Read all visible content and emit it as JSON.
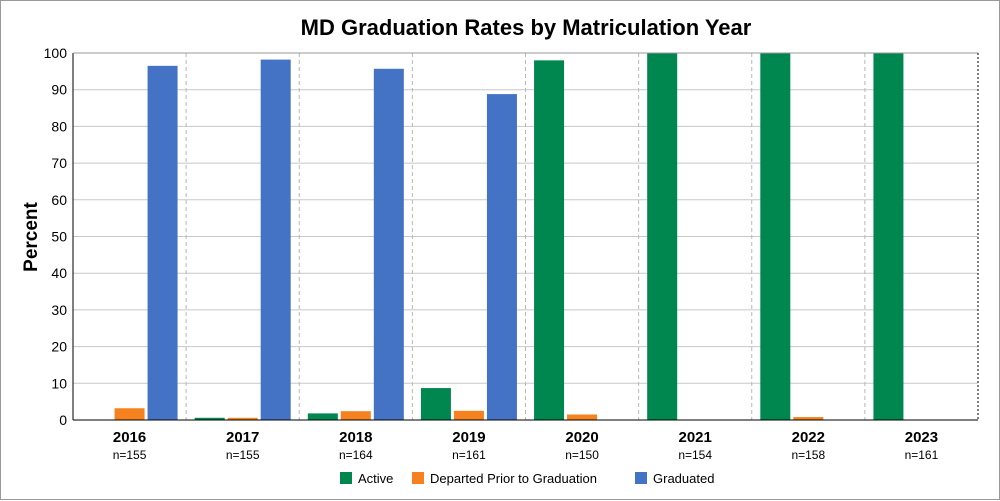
{
  "chart_data": {
    "type": "bar",
    "title": "MD Graduation Rates by Matriculation Year",
    "ylabel": "Percent",
    "xlabel": "",
    "ylim": [
      0,
      100
    ],
    "yticks": [
      0,
      10,
      20,
      30,
      40,
      50,
      60,
      70,
      80,
      90,
      100
    ],
    "categories": [
      "2016",
      "2017",
      "2018",
      "2019",
      "2020",
      "2021",
      "2022",
      "2023"
    ],
    "sublabels": [
      "n=155",
      "n=155",
      "n=164",
      "n=161",
      "n=150",
      "n=154",
      "n=158",
      "n=161"
    ],
    "series": [
      {
        "name": "Active",
        "color": "#00874f",
        "values": [
          0,
          0.6,
          1.8,
          8.7,
          98.0,
          100,
          100,
          100
        ]
      },
      {
        "name": "Departed Prior to Graduation",
        "color": "#f5821f",
        "values": [
          3.2,
          0.6,
          2.4,
          2.5,
          1.5,
          0,
          0.8,
          0
        ]
      },
      {
        "name": "Graduated",
        "color": "#4472c4",
        "values": [
          96.5,
          98.2,
          95.7,
          88.8,
          0,
          0,
          0,
          0
        ]
      }
    ],
    "grid": true,
    "legend_position": "bottom"
  }
}
